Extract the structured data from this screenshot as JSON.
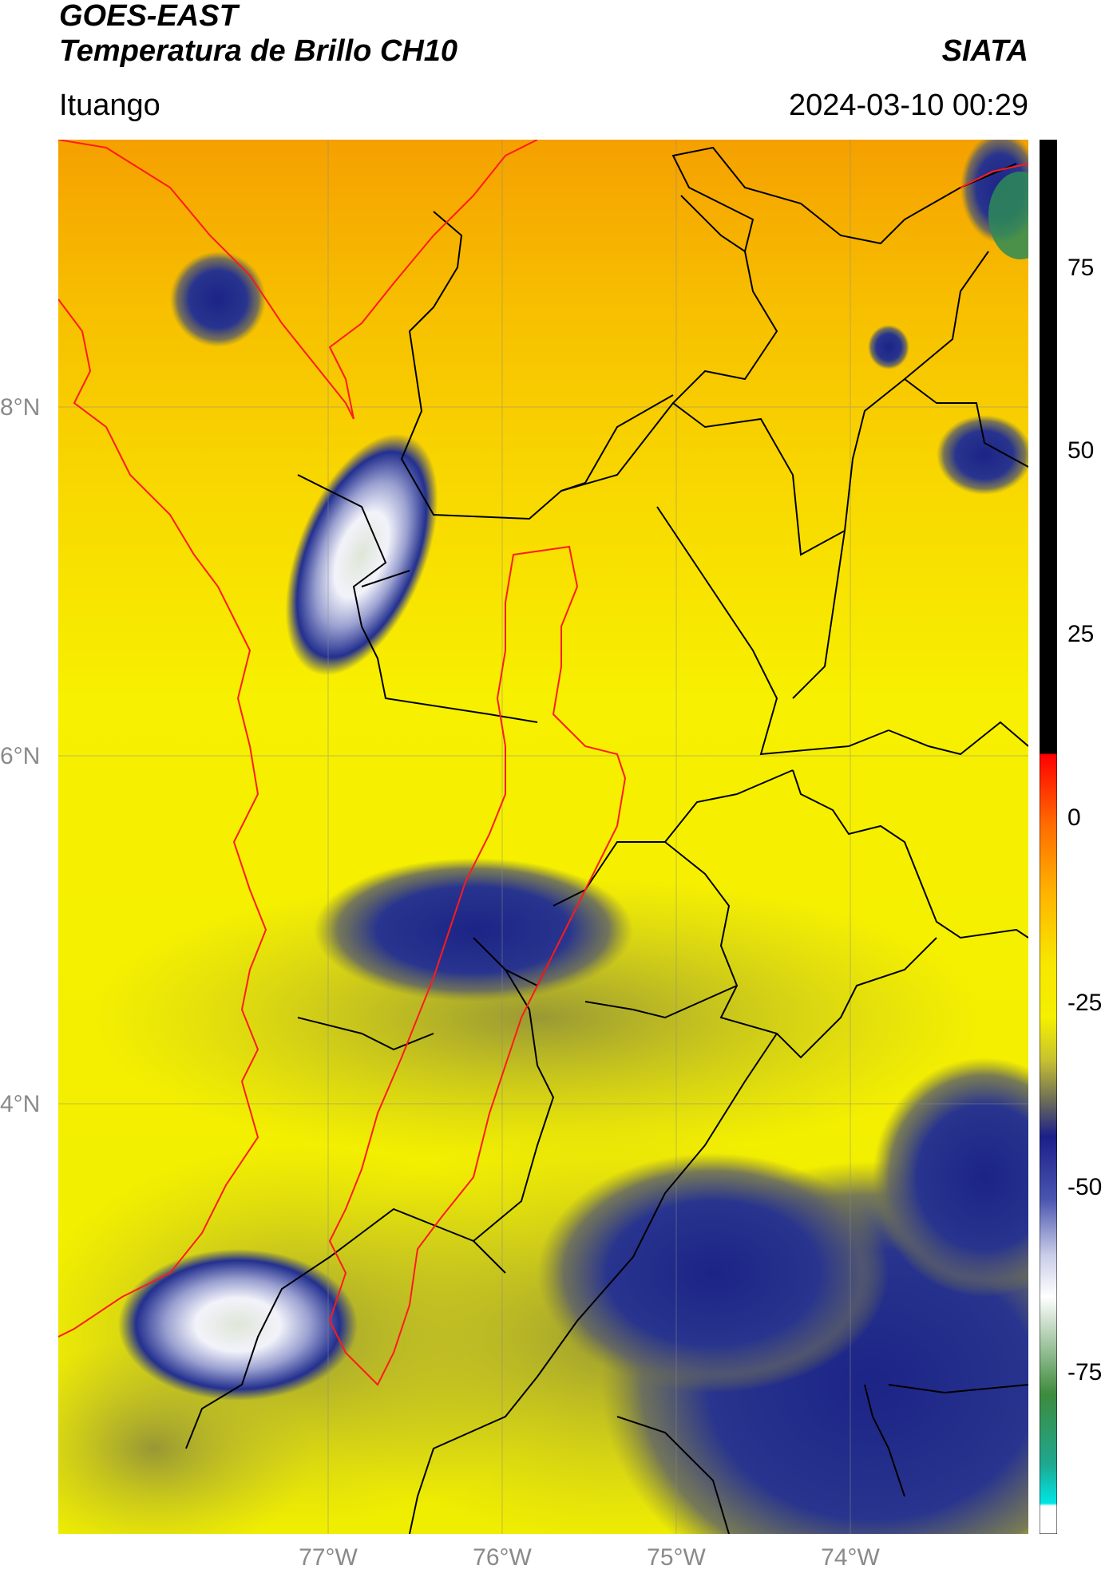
{
  "header": {
    "satellite": "GOES-EAST",
    "product": "Temperatura de Brillo CH10",
    "organization": "SIATA",
    "region": "Ituango",
    "timestamp": "2024-03-10 00:29"
  },
  "map": {
    "lat_ticks": [
      "8°N",
      "6°N",
      "4°N"
    ],
    "lon_ticks": [
      "77°W",
      "76°W",
      "75°W",
      "74°W"
    ],
    "colors": {
      "warm": "#f5a300",
      "mid": "#f7f000",
      "cloud_dark": "#1e2a8a",
      "cloud_cold": "#eef0f8",
      "admin_border": "#000000",
      "basin_border": "#ff1a1a"
    }
  },
  "colorbar": {
    "ticks": [
      "75",
      "50",
      "25",
      "0",
      "-25",
      "-50",
      "-75"
    ]
  }
}
